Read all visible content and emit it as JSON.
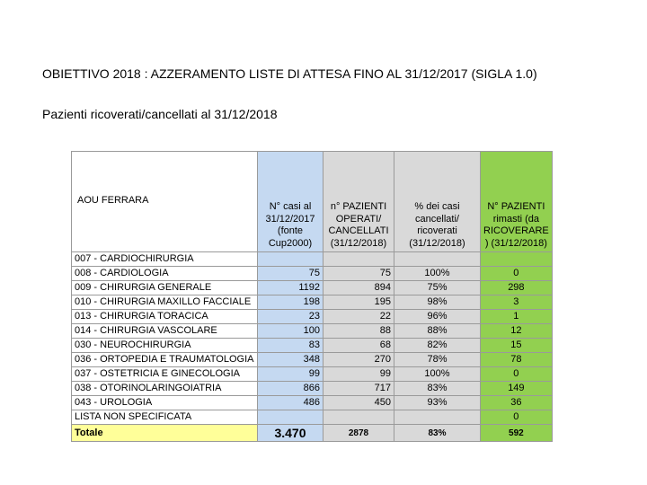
{
  "title": "OBIETTIVO 2018 : AZZERAMENTO LISTE DI ATTESA FINO AL 31/12/2017 (SIGLA 1.0)",
  "subtitle": "Pazienti ricoverati/cancellati al 31/12/2018",
  "table": {
    "headers": [
      "AOU FERRARA",
      "N° casi al 31/12/2017 (fonte Cup2000)",
      "n° PAZIENTI OPERATI/ CANCELLATI (31/12/2018)",
      "% dei casi cancellati/ ricoverati (31/12/2018)",
      "N° PAZIENTI rimasti (da RICOVERARE ) (31/12/2018)"
    ],
    "rows": [
      {
        "name": "007 - CARDIOCHIRURGIA",
        "casi": "",
        "operati": "",
        "pct": "",
        "rimasti": ""
      },
      {
        "name": "008 - CARDIOLOGIA",
        "casi": "75",
        "operati": "75",
        "pct": "100%",
        "rimasti": "0"
      },
      {
        "name": "009 - CHIRURGIA GENERALE",
        "casi": "1192",
        "operati": "894",
        "pct": "75%",
        "rimasti": "298"
      },
      {
        "name": "010 - CHIRURGIA MAXILLO FACCIALE",
        "casi": "198",
        "operati": "195",
        "pct": "98%",
        "rimasti": "3"
      },
      {
        "name": "013 - CHIRURGIA TORACICA",
        "casi": "23",
        "operati": "22",
        "pct": "96%",
        "rimasti": "1"
      },
      {
        "name": "014 - CHIRURGIA VASCOLARE",
        "casi": "100",
        "operati": "88",
        "pct": "88%",
        "rimasti": "12"
      },
      {
        "name": "030 - NEUROCHIRURGIA",
        "casi": "83",
        "operati": "68",
        "pct": "82%",
        "rimasti": "15"
      },
      {
        "name": "036 - ORTOPEDIA E TRAUMATOLOGIA",
        "casi": "348",
        "operati": "270",
        "pct": "78%",
        "rimasti": "78"
      },
      {
        "name": "037 - OSTETRICIA E GINECOLOGIA",
        "casi": "99",
        "operati": "99",
        "pct": "100%",
        "rimasti": "0"
      },
      {
        "name": "038 - OTORINOLARINGOIATRIA",
        "casi": "866",
        "operati": "717",
        "pct": "83%",
        "rimasti": "149"
      },
      {
        "name": "043 - UROLOGIA",
        "casi": "486",
        "operati": "450",
        "pct": "93%",
        "rimasti": "36"
      },
      {
        "name": "LISTA NON SPECIFICATA",
        "casi": "",
        "operati": "",
        "pct": "",
        "rimasti": "0"
      }
    ],
    "total": {
      "name": "Totale",
      "casi": "3.470",
      "operati": "2878",
      "pct": "83%",
      "rimasti": "592"
    }
  },
  "colors": {
    "blue": "#c5d9f1",
    "gray": "#d9d9d9",
    "green": "#92d050",
    "yellow": "#ffff99"
  }
}
